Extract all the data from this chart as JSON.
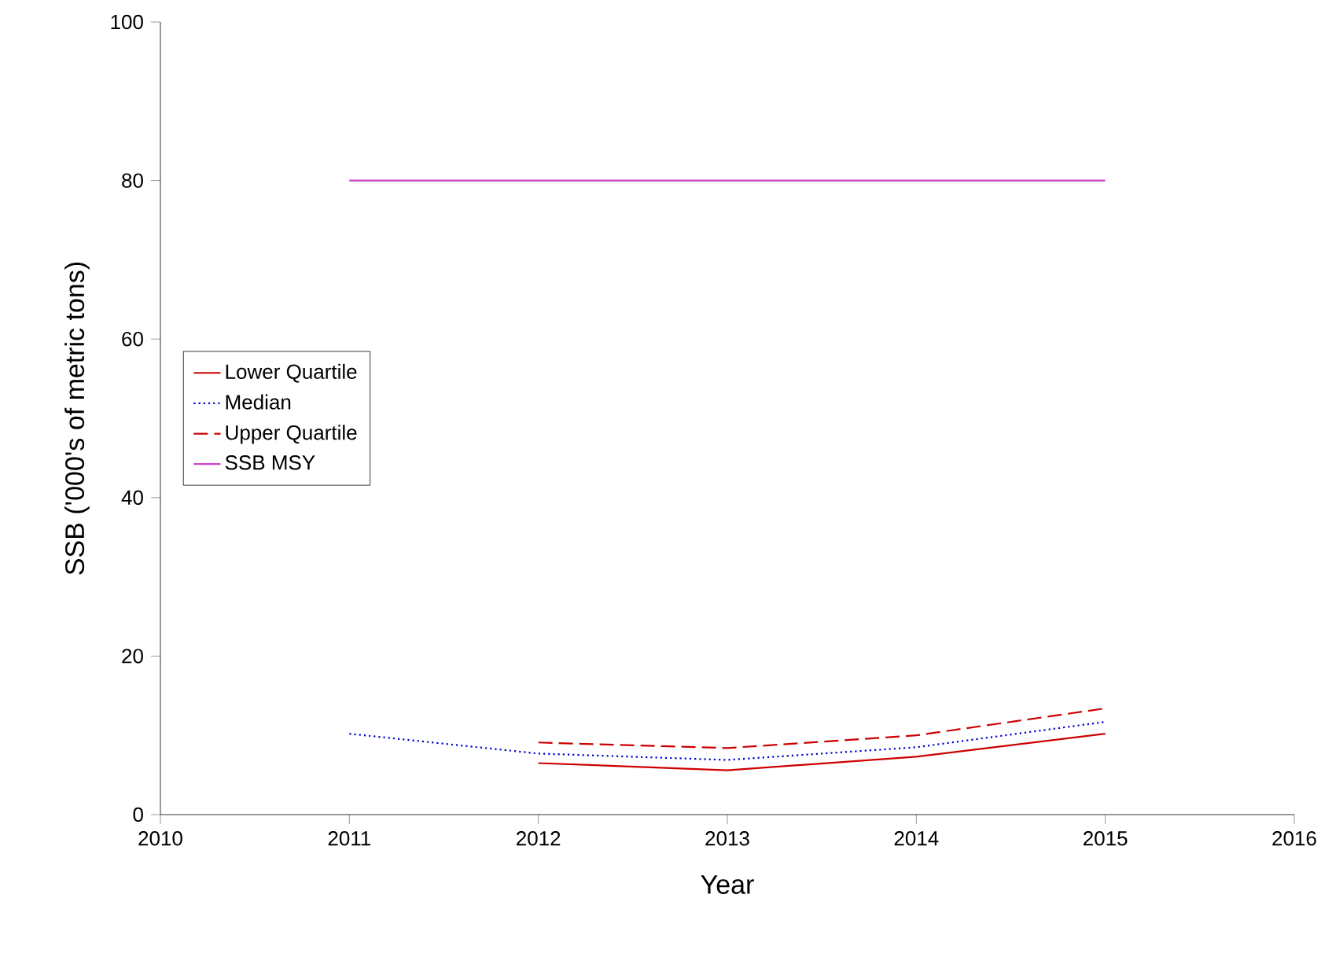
{
  "chart_data": {
    "type": "line",
    "xlabel": "Year",
    "ylabel": "SSB ('000's of metric tons)",
    "xlim": [
      2010,
      2016
    ],
    "xticks": [
      2010,
      2011,
      2012,
      2013,
      2014,
      2015,
      2016
    ],
    "ylim": [
      0,
      100
    ],
    "yticks": [
      0,
      20,
      40,
      60,
      80,
      100
    ],
    "grid": false,
    "legend": "left",
    "marker": "none",
    "series": [
      {
        "name": "Lower Quartile",
        "color": "#cc0000",
        "line_style": "solid",
        "x": [
          2012,
          2013,
          2014,
          2015
        ],
        "values": [
          6.5,
          5.6,
          7.3,
          10.2
        ]
      },
      {
        "name": "Median",
        "color": "#0000cc",
        "line_style": "dotted",
        "x": [
          2011,
          2012,
          2013,
          2014,
          2015
        ],
        "values": [
          10.2,
          7.7,
          6.9,
          8.5,
          11.7
        ]
      },
      {
        "name": "Upper Quartile",
        "color": "#cc0000",
        "line_style": "dashed",
        "x": [
          2012,
          2013,
          2014,
          2015
        ],
        "values": [
          9.1,
          8.4,
          10.0,
          13.4
        ]
      },
      {
        "name": "SSB MSY",
        "color": "#cc44cc",
        "line_style": "solid",
        "x": [
          2011,
          2015
        ],
        "values": [
          80,
          80
        ]
      }
    ]
  }
}
